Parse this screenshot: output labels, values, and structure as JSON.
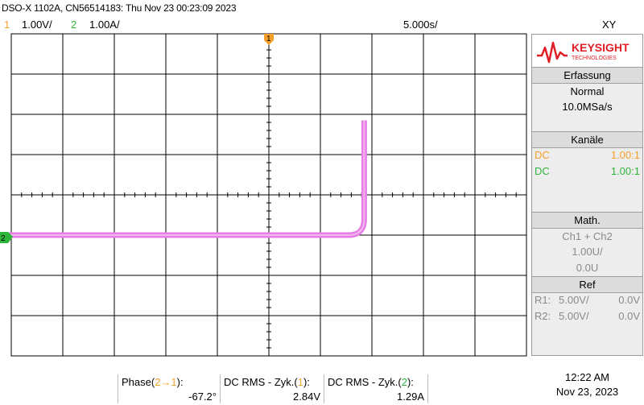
{
  "header": {
    "title": "DSO-X 1102A, CN56514183: Thu Nov 23 00:23:09 2023",
    "ch1_num": "1",
    "ch1_scale": "1.00V/",
    "ch2_num": "2",
    "ch2_scale": "1.00A/",
    "timebase": "5.000s/",
    "mode": "XY"
  },
  "colors": {
    "ch1": "#f5a02a",
    "ch2": "#2fb53a",
    "trace": "#e67fe3",
    "grid": "#000000"
  },
  "display": {
    "ch1_marker": "1",
    "ch2_marker": "2"
  },
  "trace_shape": {
    "description_free": true,
    "horizontal_y_div": -1.0,
    "x_start_div": -5.3,
    "knee_x_div": 1.55,
    "vertical_top_y_div": 1.85,
    "vertical_x_div": 1.85
  },
  "sidebar": {
    "brand": "KEYSIGHT",
    "brand_sub": "TECHNOLOGIES",
    "acquisition_title": "Erfassung",
    "acquisition_mode": "Normal",
    "sample_rate": "10.0MSa/s",
    "channels_title": "Kanäle",
    "ch1_coupling": "DC",
    "ch1_probe": "1.00:1",
    "ch2_coupling": "DC",
    "ch2_probe": "1.00:1",
    "math_title": "Math.",
    "math_func": "Ch1 + Ch2",
    "math_scale": "1.00U/",
    "math_offset": "0.0U",
    "ref_title": "Ref",
    "r1_label": "R1:",
    "r1_scale": "5.00V/",
    "r1_offset": "0.0V",
    "r2_label": "R2:",
    "r2_scale": "5.00V/",
    "r2_offset": "0.0V"
  },
  "measurements": [
    {
      "label_prefix": "Phase(",
      "label_ch": "2→1",
      "label_suffix": "):",
      "value": "-67.2°"
    },
    {
      "label_prefix": "DC RMS - Zyk.(",
      "label_ch": "1",
      "label_suffix": "):",
      "value": "2.84V"
    },
    {
      "label_prefix": "DC RMS - Zyk.(",
      "label_ch": "2",
      "label_suffix": "):",
      "value": "1.29A"
    }
  ],
  "clock": {
    "time": "12:22 AM",
    "date": "Nov 23, 2023"
  }
}
